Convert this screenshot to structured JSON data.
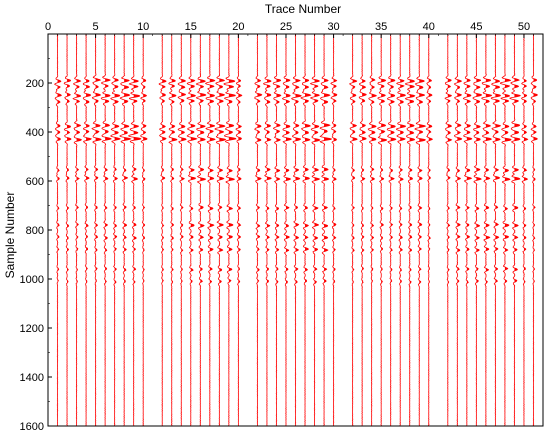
{
  "chart_data": {
    "type": "seismic-wiggle",
    "xlabel": "Trace Number",
    "ylabel": "Sample Number",
    "xlim": [
      0,
      52
    ],
    "ylim": [
      0,
      1600
    ],
    "x_axis_position": "top",
    "y_inverted": true,
    "x_ticks": [
      0,
      5,
      10,
      15,
      20,
      25,
      30,
      35,
      40,
      45,
      50
    ],
    "x_tick_labels": [
      "0",
      "5",
      "10",
      "15",
      "20",
      "25",
      "30",
      "35",
      "40",
      "45",
      "50"
    ],
    "y_ticks": [
      200,
      400,
      600,
      800,
      1000,
      1200,
      1400,
      1600
    ],
    "y_tick_labels": [
      "200",
      "400",
      "600",
      "800",
      "1000",
      "1200",
      "1400",
      "1600"
    ],
    "grid": false,
    "trace_color": "#ff0000",
    "traces": {
      "first": 1,
      "last": 51,
      "missing": [
        11,
        21,
        31,
        41
      ]
    },
    "events": [
      {
        "sample": 190,
        "strength": 0.75
      },
      {
        "sample": 215,
        "strength": 0.6
      },
      {
        "sample": 250,
        "strength": 0.85
      },
      {
        "sample": 275,
        "strength": 0.55
      },
      {
        "sample": 375,
        "strength": 0.75
      },
      {
        "sample": 400,
        "strength": 0.55
      },
      {
        "sample": 430,
        "strength": 0.95
      },
      {
        "sample": 555,
        "strength": 0.35
      },
      {
        "sample": 590,
        "strength": 0.5
      },
      {
        "sample": 710,
        "strength": 0.3
      },
      {
        "sample": 780,
        "strength": 0.35
      },
      {
        "sample": 830,
        "strength": 0.35
      },
      {
        "sample": 880,
        "strength": 0.3
      },
      {
        "sample": 960,
        "strength": 0.25
      },
      {
        "sample": 1010,
        "strength": 0.2
      }
    ]
  }
}
